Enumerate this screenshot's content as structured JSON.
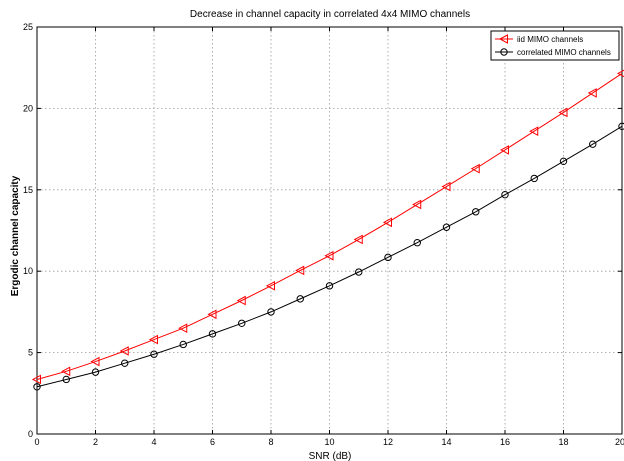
{
  "chart_data": {
    "type": "line",
    "title": "Decrease in channel capacity in correlated  4x4 MIMO channels",
    "xlabel": "SNR (dB)",
    "ylabel": "Ergodic channel capacity",
    "xlim": [
      0,
      20
    ],
    "ylim": [
      0,
      25
    ],
    "xticks": [
      0,
      2,
      4,
      6,
      8,
      10,
      12,
      14,
      16,
      18,
      20
    ],
    "yticks": [
      0,
      5,
      10,
      15,
      20,
      25
    ],
    "grid": true,
    "legend_position": "top-right",
    "x": [
      0,
      1,
      2,
      3,
      4,
      5,
      6,
      7,
      8,
      9,
      10,
      11,
      12,
      13,
      14,
      15,
      16,
      17,
      18,
      19,
      20
    ],
    "series": [
      {
        "name": "iid MIMO channels",
        "color": "#ff0000",
        "marker": "triangle-left",
        "values": [
          3.35,
          3.85,
          4.45,
          5.1,
          5.8,
          6.5,
          7.35,
          8.2,
          9.1,
          10.05,
          10.95,
          11.95,
          13.0,
          14.1,
          15.2,
          16.3,
          17.45,
          18.6,
          19.75,
          20.95,
          22.15
        ]
      },
      {
        "name": "correlated MIMO channels",
        "color": "#000000",
        "marker": "circle",
        "values": [
          2.9,
          3.35,
          3.8,
          4.35,
          4.9,
          5.5,
          6.15,
          6.8,
          7.5,
          8.3,
          9.1,
          9.95,
          10.85,
          11.75,
          12.7,
          13.65,
          14.7,
          15.7,
          16.75,
          17.8,
          18.9
        ]
      }
    ]
  }
}
